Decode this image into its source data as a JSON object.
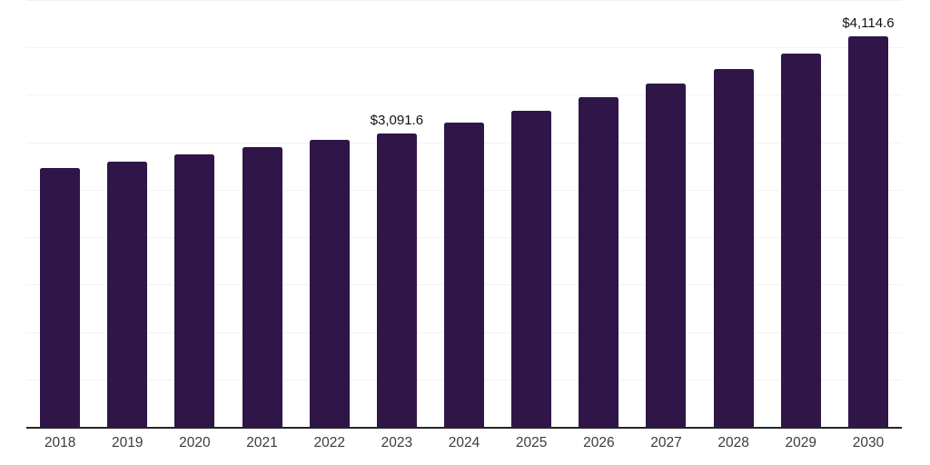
{
  "chart_data": {
    "type": "bar",
    "title": "",
    "xlabel": "",
    "ylabel": "",
    "categories": [
      "2018",
      "2019",
      "2020",
      "2021",
      "2022",
      "2023",
      "2024",
      "2025",
      "2026",
      "2027",
      "2028",
      "2029",
      "2030"
    ],
    "values": [
      2730,
      2800,
      2875,
      2945,
      3025,
      3091.6,
      3210,
      3335,
      3475,
      3615,
      3770,
      3940,
      4114.6
    ],
    "data_labels": {
      "2023": "$3,091.6",
      "2030": "$4,114.6"
    },
    "ylim": [
      0,
      4500
    ],
    "gridline_step": 500,
    "grid": "horizontal",
    "legend": "none",
    "colors": {
      "bar": "#2F1548",
      "gridline": "#F2F2F2",
      "axis_line": "#262626",
      "tick_label": "#3C3C3C",
      "data_label": "#111111",
      "background": "#FFFFFF"
    }
  }
}
